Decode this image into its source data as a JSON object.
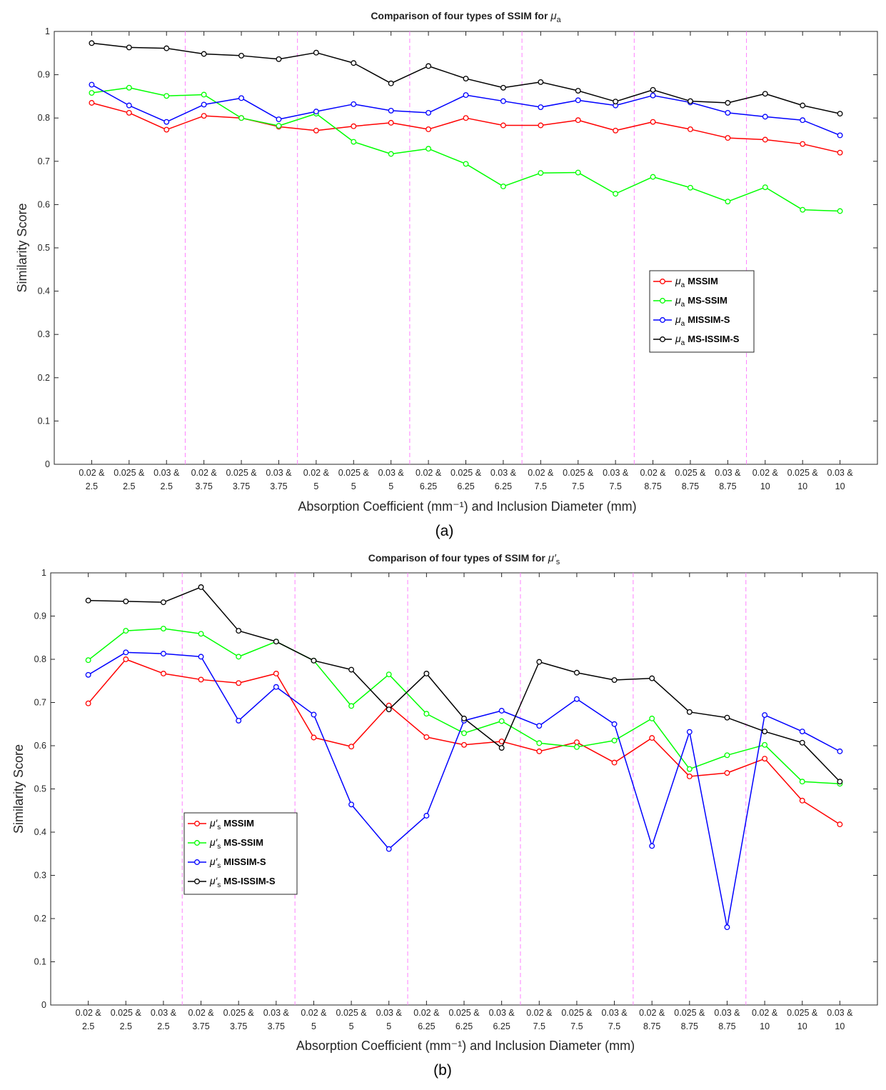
{
  "chart_data": [
    {
      "type": "line",
      "panel_label": "(a)",
      "title": "Comparison of four types of SSIM for μa",
      "title_text": "Comparison of four types of SSIM for ",
      "title_symbol": "μ",
      "title_subscript": "a",
      "xlabel": "Absorption Coefficient (mm⁻¹) and Inclusion Diameter (mm)",
      "ylabel": "Similarity Score",
      "ylim": [
        0,
        1
      ],
      "yticks": [
        "0",
        "0.1",
        "0.2",
        "0.3",
        "0.4",
        "0.5",
        "0.6",
        "0.7",
        "0.8",
        "0.9",
        "1"
      ],
      "categories_line1": [
        "0.02 &",
        "0.025 &",
        "0.03 &",
        "0.02 &",
        "0.025 &",
        "0.03 &",
        "0.02 &",
        "0.025 &",
        "0.03 &",
        "0.02 &",
        "0.025 &",
        "0.03 &",
        "0.02 &",
        "0.025 &",
        "0.03 &",
        "0.02 &",
        "0.025 &",
        "0.03 &",
        "0.02 &",
        "0.025 &",
        "0.03 &"
      ],
      "categories_line2": [
        "2.5",
        "2.5",
        "2.5",
        "3.75",
        "3.75",
        "3.75",
        "5",
        "5",
        "5",
        "6.25",
        "6.25",
        "6.25",
        "7.5",
        "7.5",
        "7.5",
        "8.75",
        "8.75",
        "8.75",
        "10",
        "10",
        "10"
      ],
      "group_separators_after": [
        3,
        6,
        9,
        12,
        15,
        18
      ],
      "legend_position": "center-right",
      "series": [
        {
          "name": "μa MSSIM",
          "symbol": "μ",
          "sub": "a",
          "label": "MSSIM",
          "color": "#ff0000",
          "values": [
            0.835,
            0.812,
            0.773,
            0.805,
            0.8,
            0.78,
            0.771,
            0.781,
            0.789,
            0.774,
            0.8,
            0.783,
            0.783,
            0.795,
            0.771,
            0.791,
            0.774,
            0.754,
            0.75,
            0.74,
            0.72
          ]
        },
        {
          "name": "μa MS-SSIM",
          "symbol": "μ",
          "sub": "a",
          "label": "MS-SSIM",
          "color": "#00ff00",
          "values": [
            0.858,
            0.87,
            0.851,
            0.854,
            0.8,
            0.782,
            0.81,
            0.745,
            0.717,
            0.729,
            0.694,
            0.642,
            0.673,
            0.674,
            0.625,
            0.664,
            0.639,
            0.607,
            0.64,
            0.588,
            0.585
          ]
        },
        {
          "name": "μa MISSIM-S",
          "symbol": "μ",
          "sub": "a",
          "label": "MISSIM-S",
          "color": "#0000ff",
          "values": [
            0.877,
            0.829,
            0.791,
            0.831,
            0.846,
            0.797,
            0.815,
            0.832,
            0.817,
            0.812,
            0.853,
            0.839,
            0.825,
            0.841,
            0.829,
            0.852,
            0.836,
            0.812,
            0.803,
            0.795,
            0.76
          ]
        },
        {
          "name": "μa MS-ISSIM-S",
          "symbol": "μ",
          "sub": "a",
          "label": "MS-ISSIM-S",
          "color": "#000000",
          "values": [
            0.973,
            0.963,
            0.961,
            0.948,
            0.944,
            0.936,
            0.951,
            0.927,
            0.88,
            0.92,
            0.891,
            0.87,
            0.883,
            0.863,
            0.838,
            0.865,
            0.839,
            0.835,
            0.856,
            0.829,
            0.81
          ]
        }
      ]
    },
    {
      "type": "line",
      "panel_label": "(b)",
      "title": "Comparison of four types of SSIM for μ′s",
      "title_text": "Comparison of four types of SSIM for ",
      "title_symbol": "μ′",
      "title_subscript": "s",
      "xlabel": "Absorption Coefficient (mm⁻¹) and Inclusion Diameter (mm)",
      "ylabel": "Similarity Score",
      "ylim": [
        0,
        1
      ],
      "yticks": [
        "0",
        "0.1",
        "0.2",
        "0.3",
        "0.4",
        "0.5",
        "0.6",
        "0.7",
        "0.8",
        "0.9",
        "1"
      ],
      "categories_line1": [
        "0.02 &",
        "0.025 &",
        "0.03 &",
        "0.02 &",
        "0.025 &",
        "0.03 &",
        "0.02 &",
        "0.025 &",
        "0.03 &",
        "0.02 &",
        "0.025 &",
        "0.03 &",
        "0.02 &",
        "0.025 &",
        "0.03 &",
        "0.02 &",
        "0.025 &",
        "0.03 &",
        "0.02 &",
        "0.025 &",
        "0.03 &"
      ],
      "categories_line2": [
        "2.5",
        "2.5",
        "2.5",
        "3.75",
        "3.75",
        "3.75",
        "5",
        "5",
        "5",
        "6.25",
        "6.25",
        "6.25",
        "7.5",
        "7.5",
        "7.5",
        "8.75",
        "8.75",
        "8.75",
        "10",
        "10",
        "10"
      ],
      "group_separators_after": [
        3,
        6,
        9,
        12,
        15,
        18
      ],
      "legend_position": "lower-left",
      "series": [
        {
          "name": "μ′s MSSIM",
          "symbol": "μ′",
          "sub": "s",
          "label": "MSSIM",
          "color": "#ff0000",
          "values": [
            0.698,
            0.8,
            0.767,
            0.753,
            0.745,
            0.767,
            0.619,
            0.598,
            0.693,
            0.62,
            0.602,
            0.61,
            0.587,
            0.608,
            0.561,
            0.618,
            0.529,
            0.537,
            0.57,
            0.473,
            0.418
          ]
        },
        {
          "name": "μ′s MS-SSIM",
          "symbol": "μ′",
          "sub": "s",
          "label": "MS-SSIM",
          "color": "#00ff00",
          "values": [
            0.798,
            0.866,
            0.871,
            0.859,
            0.806,
            0.841,
            0.797,
            0.692,
            0.765,
            0.674,
            0.629,
            0.657,
            0.606,
            0.597,
            0.612,
            0.663,
            0.546,
            0.578,
            0.602,
            0.517,
            0.512
          ]
        },
        {
          "name": "μ′s MISSIM-S",
          "symbol": "μ′",
          "sub": "s",
          "label": "MISSIM-S",
          "color": "#0000ff",
          "values": [
            0.764,
            0.816,
            0.813,
            0.806,
            0.658,
            0.736,
            0.672,
            0.464,
            0.361,
            0.438,
            0.658,
            0.681,
            0.646,
            0.708,
            0.65,
            0.368,
            0.632,
            0.18,
            0.671,
            0.633,
            0.587
          ]
        },
        {
          "name": "μ′s MS-ISSIM-S",
          "symbol": "μ′",
          "sub": "s",
          "label": "MS-ISSIM-S",
          "color": "#000000",
          "values": [
            0.936,
            0.934,
            0.932,
            0.967,
            0.866,
            0.841,
            0.797,
            0.776,
            0.684,
            0.767,
            0.663,
            0.595,
            0.794,
            0.769,
            0.752,
            0.756,
            0.678,
            0.665,
            0.633,
            0.607,
            0.517
          ]
        }
      ]
    }
  ]
}
